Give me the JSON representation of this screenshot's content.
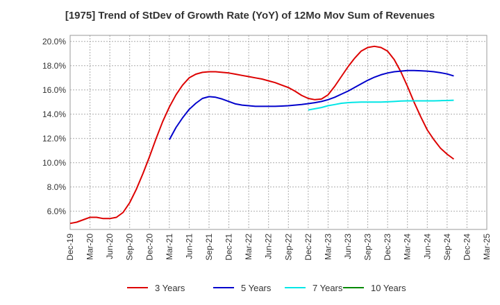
{
  "chart_data": {
    "type": "line",
    "title": "[1975]  Trend of StDev of Growth Rate (YoY) of 12Mo Mov Sum of Revenues",
    "xlabel": "",
    "ylabel": "",
    "ylim": [
      4.5,
      20.5
    ],
    "y_ticks": [
      6.0,
      8.0,
      10.0,
      12.0,
      14.0,
      16.0,
      18.0,
      20.0
    ],
    "y_tick_labels": [
      "6.0%",
      "8.0%",
      "10.0%",
      "12.0%",
      "14.0%",
      "16.0%",
      "18.0%",
      "20.0%"
    ],
    "x_tick_labels": [
      "Dec-19",
      "Mar-20",
      "Jun-20",
      "Sep-20",
      "Dec-20",
      "Mar-21",
      "Jun-21",
      "Sep-21",
      "Dec-21",
      "Mar-22",
      "Jun-22",
      "Sep-22",
      "Dec-22",
      "Mar-23",
      "Jun-23",
      "Sep-23",
      "Dec-23",
      "Mar-24",
      "Jun-24",
      "Sep-24",
      "Dec-24",
      "Mar-25"
    ],
    "grid": true,
    "legend_position": "bottom",
    "series": [
      {
        "name": "3 Years",
        "color": "#dd0000",
        "points": [
          [
            0,
            5.0
          ],
          [
            1,
            5.1
          ],
          [
            2,
            5.3
          ],
          [
            3,
            5.5
          ],
          [
            4,
            5.5
          ],
          [
            5,
            5.4
          ],
          [
            6,
            5.4
          ],
          [
            7,
            5.5
          ],
          [
            8,
            5.9
          ],
          [
            9,
            6.7
          ],
          [
            10,
            7.8
          ],
          [
            11,
            9.1
          ],
          [
            12,
            10.5
          ],
          [
            13,
            12.0
          ],
          [
            14,
            13.4
          ],
          [
            15,
            14.6
          ],
          [
            16,
            15.6
          ],
          [
            17,
            16.4
          ],
          [
            18,
            17.0
          ],
          [
            19,
            17.3
          ],
          [
            20,
            17.45
          ],
          [
            21,
            17.5
          ],
          [
            22,
            17.5
          ],
          [
            23,
            17.45
          ],
          [
            24,
            17.4
          ],
          [
            25,
            17.3
          ],
          [
            26,
            17.2
          ],
          [
            27,
            17.1
          ],
          [
            28,
            17.0
          ],
          [
            29,
            16.9
          ],
          [
            30,
            16.75
          ],
          [
            31,
            16.6
          ],
          [
            32,
            16.4
          ],
          [
            33,
            16.2
          ],
          [
            34,
            15.9
          ],
          [
            35,
            15.55
          ],
          [
            36,
            15.3
          ],
          [
            37,
            15.2
          ],
          [
            38,
            15.25
          ],
          [
            39,
            15.6
          ],
          [
            40,
            16.3
          ],
          [
            41,
            17.1
          ],
          [
            42,
            17.9
          ],
          [
            43,
            18.6
          ],
          [
            44,
            19.2
          ],
          [
            45,
            19.5
          ],
          [
            46,
            19.6
          ],
          [
            47,
            19.5
          ],
          [
            48,
            19.2
          ],
          [
            49,
            18.5
          ],
          [
            50,
            17.5
          ],
          [
            51,
            16.3
          ],
          [
            52,
            15.0
          ],
          [
            53,
            13.8
          ],
          [
            54,
            12.7
          ],
          [
            55,
            11.9
          ],
          [
            56,
            11.2
          ],
          [
            57,
            10.7
          ],
          [
            58,
            10.3
          ]
        ]
      },
      {
        "name": "5 Years",
        "color": "#0000cc",
        "points": [
          [
            15,
            11.9
          ],
          [
            16,
            12.9
          ],
          [
            17,
            13.7
          ],
          [
            18,
            14.4
          ],
          [
            19,
            14.9
          ],
          [
            20,
            15.3
          ],
          [
            21,
            15.45
          ],
          [
            22,
            15.4
          ],
          [
            23,
            15.25
          ],
          [
            24,
            15.05
          ],
          [
            25,
            14.85
          ],
          [
            26,
            14.75
          ],
          [
            27,
            14.7
          ],
          [
            28,
            14.65
          ],
          [
            29,
            14.65
          ],
          [
            30,
            14.65
          ],
          [
            31,
            14.65
          ],
          [
            32,
            14.67
          ],
          [
            33,
            14.7
          ],
          [
            34,
            14.75
          ],
          [
            35,
            14.8
          ],
          [
            36,
            14.87
          ],
          [
            37,
            14.95
          ],
          [
            38,
            15.05
          ],
          [
            39,
            15.2
          ],
          [
            40,
            15.4
          ],
          [
            41,
            15.65
          ],
          [
            42,
            15.9
          ],
          [
            43,
            16.2
          ],
          [
            44,
            16.5
          ],
          [
            45,
            16.8
          ],
          [
            46,
            17.05
          ],
          [
            47,
            17.25
          ],
          [
            48,
            17.4
          ],
          [
            49,
            17.5
          ],
          [
            50,
            17.55
          ],
          [
            51,
            17.6
          ],
          [
            52,
            17.6
          ],
          [
            53,
            17.58
          ],
          [
            54,
            17.55
          ],
          [
            55,
            17.5
          ],
          [
            56,
            17.42
          ],
          [
            57,
            17.32
          ],
          [
            58,
            17.15
          ]
        ]
      },
      {
        "name": "7 Years",
        "color": "#00e6e6",
        "points": [
          [
            36,
            14.35
          ],
          [
            37,
            14.45
          ],
          [
            38,
            14.55
          ],
          [
            39,
            14.7
          ],
          [
            40,
            14.8
          ],
          [
            41,
            14.9
          ],
          [
            42,
            14.95
          ],
          [
            43,
            14.98
          ],
          [
            44,
            15.0
          ],
          [
            45,
            15.0
          ],
          [
            46,
            15.0
          ],
          [
            47,
            15.0
          ],
          [
            48,
            15.02
          ],
          [
            49,
            15.05
          ],
          [
            50,
            15.08
          ],
          [
            51,
            15.1
          ],
          [
            52,
            15.1
          ],
          [
            53,
            15.1
          ],
          [
            54,
            15.1
          ],
          [
            55,
            15.1
          ],
          [
            56,
            15.12
          ],
          [
            57,
            15.13
          ],
          [
            58,
            15.15
          ]
        ]
      },
      {
        "name": "10 Years",
        "color": "#008800",
        "points": []
      }
    ]
  }
}
